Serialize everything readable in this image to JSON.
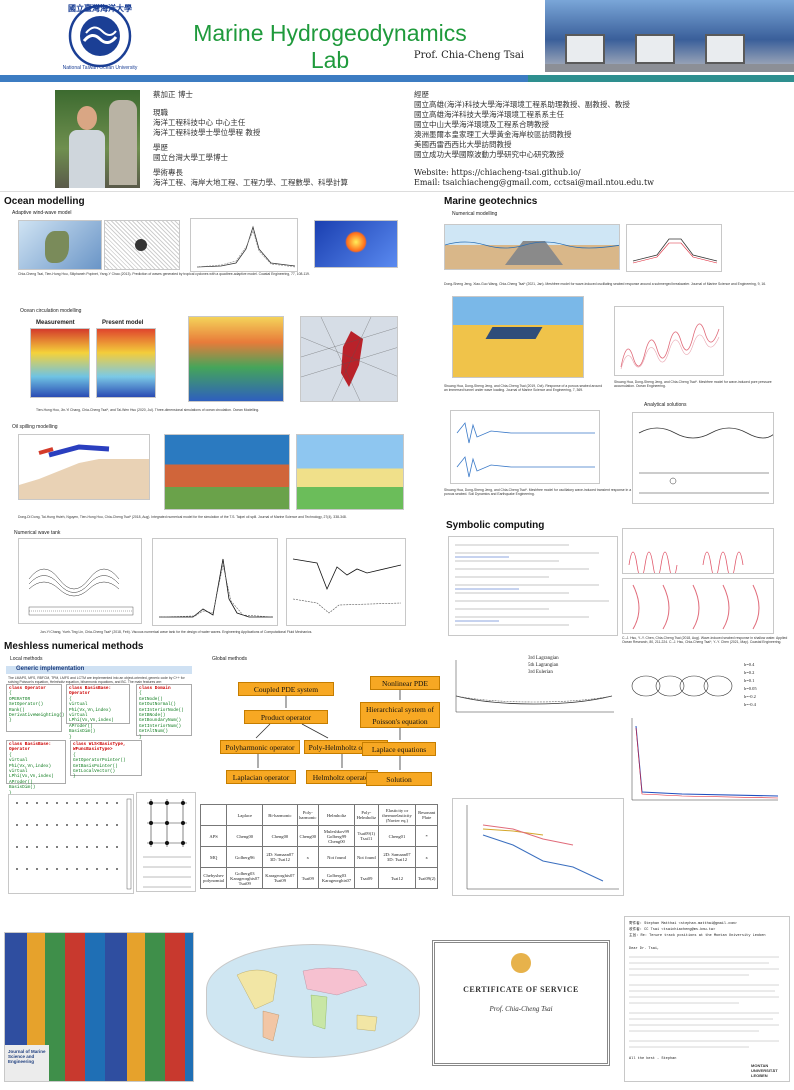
{
  "header": {
    "lab_title": "Marine Hydrogeodynamics Lab",
    "pi_name": "Prof. Chia-Cheng Tsai",
    "logo_text": "國立臺灣海洋大學",
    "logo_subtext": "National Taiwan Ocean University",
    "title_color": "#1f9a3c",
    "bar_blue": "#3c7cc2",
    "bar_teal": "#2e8f8f"
  },
  "profile": {
    "name": "蔡加正 博士",
    "current_head": "現職",
    "current": [
      "海洋工程科技中心 中心主任",
      "海洋工程科技學士學位學程 教授"
    ],
    "edu_head": "學歷",
    "edu": [
      "國立台灣大學工學博士"
    ],
    "expertise_head": "學術專長",
    "expertise": [
      "海洋工程、海岸大地工程、工程力學、工程數學、科學計算"
    ],
    "exp_head": "經歷",
    "experience": [
      "國立高雄(海洋)科技大學海洋環境工程系助理教授、副教授、教授",
      "國立高雄海洋科技大學海洋環境工程系系主任",
      "國立中山大學海洋環境及工程系合聘教授",
      "澳洲墨爾本皇家理工大學黃金海岸校區訪問教授",
      "美國西雷西西比大學訪問教授",
      "國立成功大學國際波動力學研究中心研究教授"
    ],
    "website": "Website: https://chiacheng-tsai.github.io/",
    "email": "Email: tsaichiacheng@gmail.com, cctsai@mail.ntou.edu.tw"
  },
  "sections": {
    "ocean": "Ocean modelling",
    "geo": "Marine geotechnics",
    "symbolic": "Symbolic computing",
    "meshless": "Meshless numerical methods"
  },
  "subtitles": {
    "wind_wave": "Adaptive wind-wave model",
    "circulation": "Ocean circulation modelling",
    "oil": "Oil spilling modelling",
    "wave_tank": "Numerical wave tank",
    "numerical_model": "Numerical modelling",
    "analytical": "Analytical solutions",
    "local": "Local methods",
    "global": "Global methods",
    "measurement": "Measurement",
    "present_model": "Present model"
  },
  "captions": {
    "wind_wave": "Chia-Cheng Tsai, Tien-Hung Hou, Siliphaneh Popinet, Yang-Y Chao (2013). Prediction of waves generated by tropical cyclones with a quadtree-adaptive model. Coastal Engineering, 77, 108-119.",
    "circulation": "Tien-Hung Hou, Jin-Yi Chang, Chia-Cheng Tsai*, and Tai-Wen Hsu (2020, Jul). Three-dimensional simulations of ocean circulation. Ocean Modelling.",
    "oil": "Dong-Di Dong, Tai-Hung Hsieh, Nguyen, Tien-Hung Hou, Chia-Cheng Tsai* (2018, Aug). Integrated numerical model for the simulation of the T.S. Taipei oil spill. Journal of Marine Science and Technology, 27(4), 338-348.",
    "wave_tank": "Jon-Yi Chang, Yueh-Ting Lin, Chia-Cheng Tsai* (2018, Feb). Viscous numerical wave tank for the design of water waves. Engineering Applications of Computational Fluid Mechanics.",
    "geo1": "Dong-Sheng Jeng, Xiao-Guo Wang, Chia-Cheng Tsai* (2021, Jan). Meshfree model for wave-induced oscillating seabed response around a submerged breakwater. Journal of Marine Science and Engineering, 9, 16.",
    "geo2": "Shuang Hua, Dong-Sheng Jeng, and Chia-Cheng Tsai (2019, Oct). Response of a porous seabed around an immersed tunnel under wave loading. Journal of Marine Science and Engineering, 7, 369.",
    "geo3": "Shuang Hua, Dong-Sheng Jeng, and Chia-Cheng Tsai*. Meshfree model for wave-induced pore pressure accumulation. Ocean Engineering.",
    "geo4": "Shuang Hua, Dong-Sheng Jeng, and Chia-Cheng Tsai*. Meshfree model for oscillatory wave-induced transient response in a porous seabed. Soil Dynamics and Earthquake Engineering.",
    "symb": "C.-J. Hsu, Y.-Y. Chen, Chia-Cheng Tsai (2018, Aug). Wave-induced seabed response in shallow water. Applied Ocean Research, 80, 211-224. C.-J. Hsu, Chia-Cheng Tsai*, Y.-Y. Chen (2021, May). Coastal Engineering."
  },
  "flow": {
    "coupled": "Coupled PDE system",
    "product": "Product operator",
    "polyharmonic": "Polyharmonic operator",
    "polyhelm": "Poly-Helmholtz operator",
    "laplacian": "Laplacian operator",
    "helmholtz": "Helmholtz operator",
    "nonlinear": "Nonlinear PDE",
    "hierarchical": "Hierarchical system of Poisson's equation",
    "laplace_eq": "Laplace equations",
    "solution": "Solution"
  },
  "generic_impl": {
    "title": "Generic implementation",
    "text": "The LMAPS, MFS, RBFCM, TPM, LMFS and LCTM are implemented into an object-oriented, generic code by C++ for solving Poisson's equation, Helmholtz equation, biharmonic equations, and BC. The main features are:"
  },
  "classes": [
    {
      "name": "class Operator",
      "body": [
        "{",
        "OPERATOR",
        "SetOperator()",
        "Rank()",
        "DerivativeWeighting()",
        "}"
      ]
    },
    {
      "name": "class BasisBase: Operator",
      "body": [
        "{",
        "virtual Phi(Vx,Vn,index)",
        "virtual LPhi(Vx,Vn,index)",
        "AProder()",
        "BasisDim()",
        "}"
      ]
    },
    {
      "name": "class Domain",
      "body": [
        "{",
        "GetNode()",
        "GetOutNormal()",
        "GetInteriorNode()",
        "GetBNode()",
        "GetBoundaryNum()",
        "GetInteriorNum()",
        "GetAltNum()",
        "}"
      ]
    },
    {
      "name": "class BasisBase: Operator",
      "body": [
        "{",
        "virtual Phi(Vx,Vn,index)",
        "virtual LPhi(Vx,Vn,index)",
        "AProder()",
        "BasisDim()",
        "}"
      ]
    },
    {
      "name": "class WLS<BasisType, WFuncBasisType>",
      "body": [
        "{",
        "GetOperatorPointer()",
        "GetBasisPointer()",
        "GetLocalVector()",
        "}"
      ]
    }
  ],
  "pmt": {
    "headers": [
      "",
      "Laplace",
      "Bi-harmonic",
      "Poly-harmonic",
      "Helmholtz",
      "Poly-Helmholtz",
      "Elasticity or thermoelasticity (Navier eq.)",
      "Resonant Plate"
    ],
    "rows": [
      [
        "APS",
        "Cheng00",
        "Cheng00",
        "Cheng00",
        "Muleshkov99 Golberg99 Cheng00",
        "Tsai09(1) Tsai11",
        "Cheng01",
        "*"
      ],
      [
        "MQ",
        "Golberg96",
        "2D: Samaan07 3D: Tsai12",
        "x",
        "Not found",
        "Not found",
        "2D: Samaan07 3D: Tsai12",
        "x"
      ],
      [
        "Chebyshev polynomial",
        "Golberg03 Karageorghis07 Tsai09",
        "Karageorghis07 Tsai09",
        "Tsai09",
        "Golberg03 Karageorghis07",
        "Tsai09",
        "Tsai12",
        "Tsai09(2)"
      ]
    ]
  },
  "legends": {
    "lagrangian": [
      "3rd Lagrangian",
      "5th Lagrangian",
      "3rd Eulerian"
    ],
    "h_values": [
      "h=0.4",
      "h=0.2",
      "h=0.1",
      "h=0.05",
      "h=-0.2",
      "h=-0.4"
    ]
  },
  "certificate": {
    "title": "CERTIFICATE OF SERVICE",
    "name": "Prof. Chia-Cheng Tsai"
  },
  "letter": {
    "from": "寄件者: Stephan Matthai <stephan.matthai@gmail.com>",
    "to": "收件者: CC Tsai <tsaichiacheng@ms.kmu.tw>",
    "subject": "主旨: Re: Tenure track positions at the Montan University Leoben",
    "greeting": "Dear Dr. Tsai,",
    "signoff": "All the best - Stephan",
    "university": "MONTAN UNIVERSITÄT LEOBEN"
  },
  "journal": {
    "title": "Journal of Marine Science and Engineering"
  }
}
